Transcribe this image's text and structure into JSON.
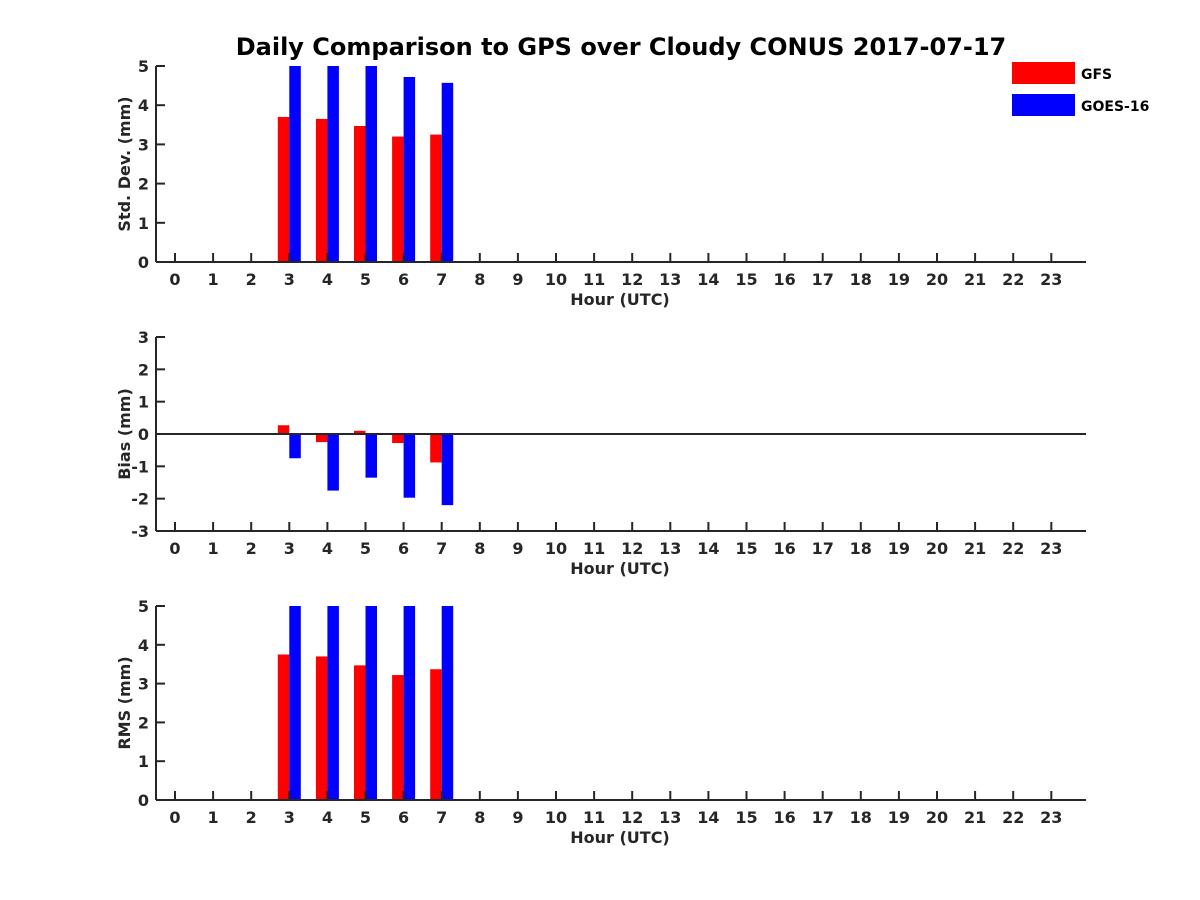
{
  "title": "Daily Comparison to GPS over Cloudy CONUS 2017-07-17",
  "legend": {
    "placement": "top-right",
    "entries": [
      {
        "name": "GFS",
        "color": "#ff0000"
      },
      {
        "name": "GOES-16",
        "color": "#0000ff"
      }
    ]
  },
  "chart_data": [
    {
      "type": "bar",
      "xlabel": "Hour (UTC)",
      "ylabel": "Std. Dev. (mm)",
      "categories": [
        "0",
        "1",
        "2",
        "3",
        "4",
        "5",
        "6",
        "7",
        "8",
        "9",
        "10",
        "11",
        "12",
        "13",
        "14",
        "15",
        "16",
        "17",
        "18",
        "19",
        "20",
        "21",
        "22",
        "23"
      ],
      "ylim": [
        0,
        5
      ],
      "yticks": [
        0,
        1,
        2,
        3,
        4,
        5
      ],
      "grid": false,
      "series": [
        {
          "name": "GFS",
          "color": "#ff0000",
          "values": [
            null,
            null,
            null,
            3.7,
            3.65,
            3.47,
            3.2,
            3.25,
            null,
            null,
            null,
            null,
            null,
            null,
            null,
            null,
            null,
            null,
            null,
            null,
            null,
            null,
            null,
            null
          ]
        },
        {
          "name": "GOES-16",
          "color": "#0000ff",
          "values": [
            null,
            null,
            null,
            5.0,
            5.0,
            5.0,
            4.72,
            4.57,
            null,
            null,
            null,
            null,
            null,
            null,
            null,
            null,
            null,
            null,
            null,
            null,
            null,
            null,
            null,
            null
          ]
        }
      ]
    },
    {
      "type": "bar",
      "xlabel": "Hour (UTC)",
      "ylabel": "Bias (mm)",
      "categories": [
        "0",
        "1",
        "2",
        "3",
        "4",
        "5",
        "6",
        "7",
        "8",
        "9",
        "10",
        "11",
        "12",
        "13",
        "14",
        "15",
        "16",
        "17",
        "18",
        "19",
        "20",
        "21",
        "22",
        "23"
      ],
      "ylim": [
        -3,
        3
      ],
      "yticks": [
        -3,
        -2,
        -1,
        0,
        1,
        2,
        3
      ],
      "grid": false,
      "zero_line": true,
      "series": [
        {
          "name": "GFS",
          "color": "#ff0000",
          "values": [
            null,
            null,
            null,
            0.27,
            -0.25,
            0.1,
            -0.28,
            -0.88,
            null,
            null,
            null,
            null,
            null,
            null,
            null,
            null,
            null,
            null,
            null,
            null,
            null,
            null,
            null,
            null
          ]
        },
        {
          "name": "GOES-16",
          "color": "#0000ff",
          "values": [
            null,
            null,
            null,
            -0.75,
            -1.75,
            -1.35,
            -1.97,
            -2.2,
            null,
            null,
            null,
            null,
            null,
            null,
            null,
            null,
            null,
            null,
            null,
            null,
            null,
            null,
            null,
            null
          ]
        }
      ]
    },
    {
      "type": "bar",
      "xlabel": "Hour (UTC)",
      "ylabel": "RMS (mm)",
      "categories": [
        "0",
        "1",
        "2",
        "3",
        "4",
        "5",
        "6",
        "7",
        "8",
        "9",
        "10",
        "11",
        "12",
        "13",
        "14",
        "15",
        "16",
        "17",
        "18",
        "19",
        "20",
        "21",
        "22",
        "23"
      ],
      "ylim": [
        0,
        5
      ],
      "yticks": [
        0,
        1,
        2,
        3,
        4,
        5
      ],
      "grid": false,
      "series": [
        {
          "name": "GFS",
          "color": "#ff0000",
          "values": [
            null,
            null,
            null,
            3.75,
            3.7,
            3.47,
            3.22,
            3.37,
            null,
            null,
            null,
            null,
            null,
            null,
            null,
            null,
            null,
            null,
            null,
            null,
            null,
            null,
            null,
            null
          ]
        },
        {
          "name": "GOES-16",
          "color": "#0000ff",
          "values": [
            null,
            null,
            null,
            5.0,
            5.0,
            5.0,
            5.0,
            5.0,
            null,
            null,
            null,
            null,
            null,
            null,
            null,
            null,
            null,
            null,
            null,
            null,
            null,
            null,
            null,
            null
          ]
        }
      ]
    }
  ]
}
